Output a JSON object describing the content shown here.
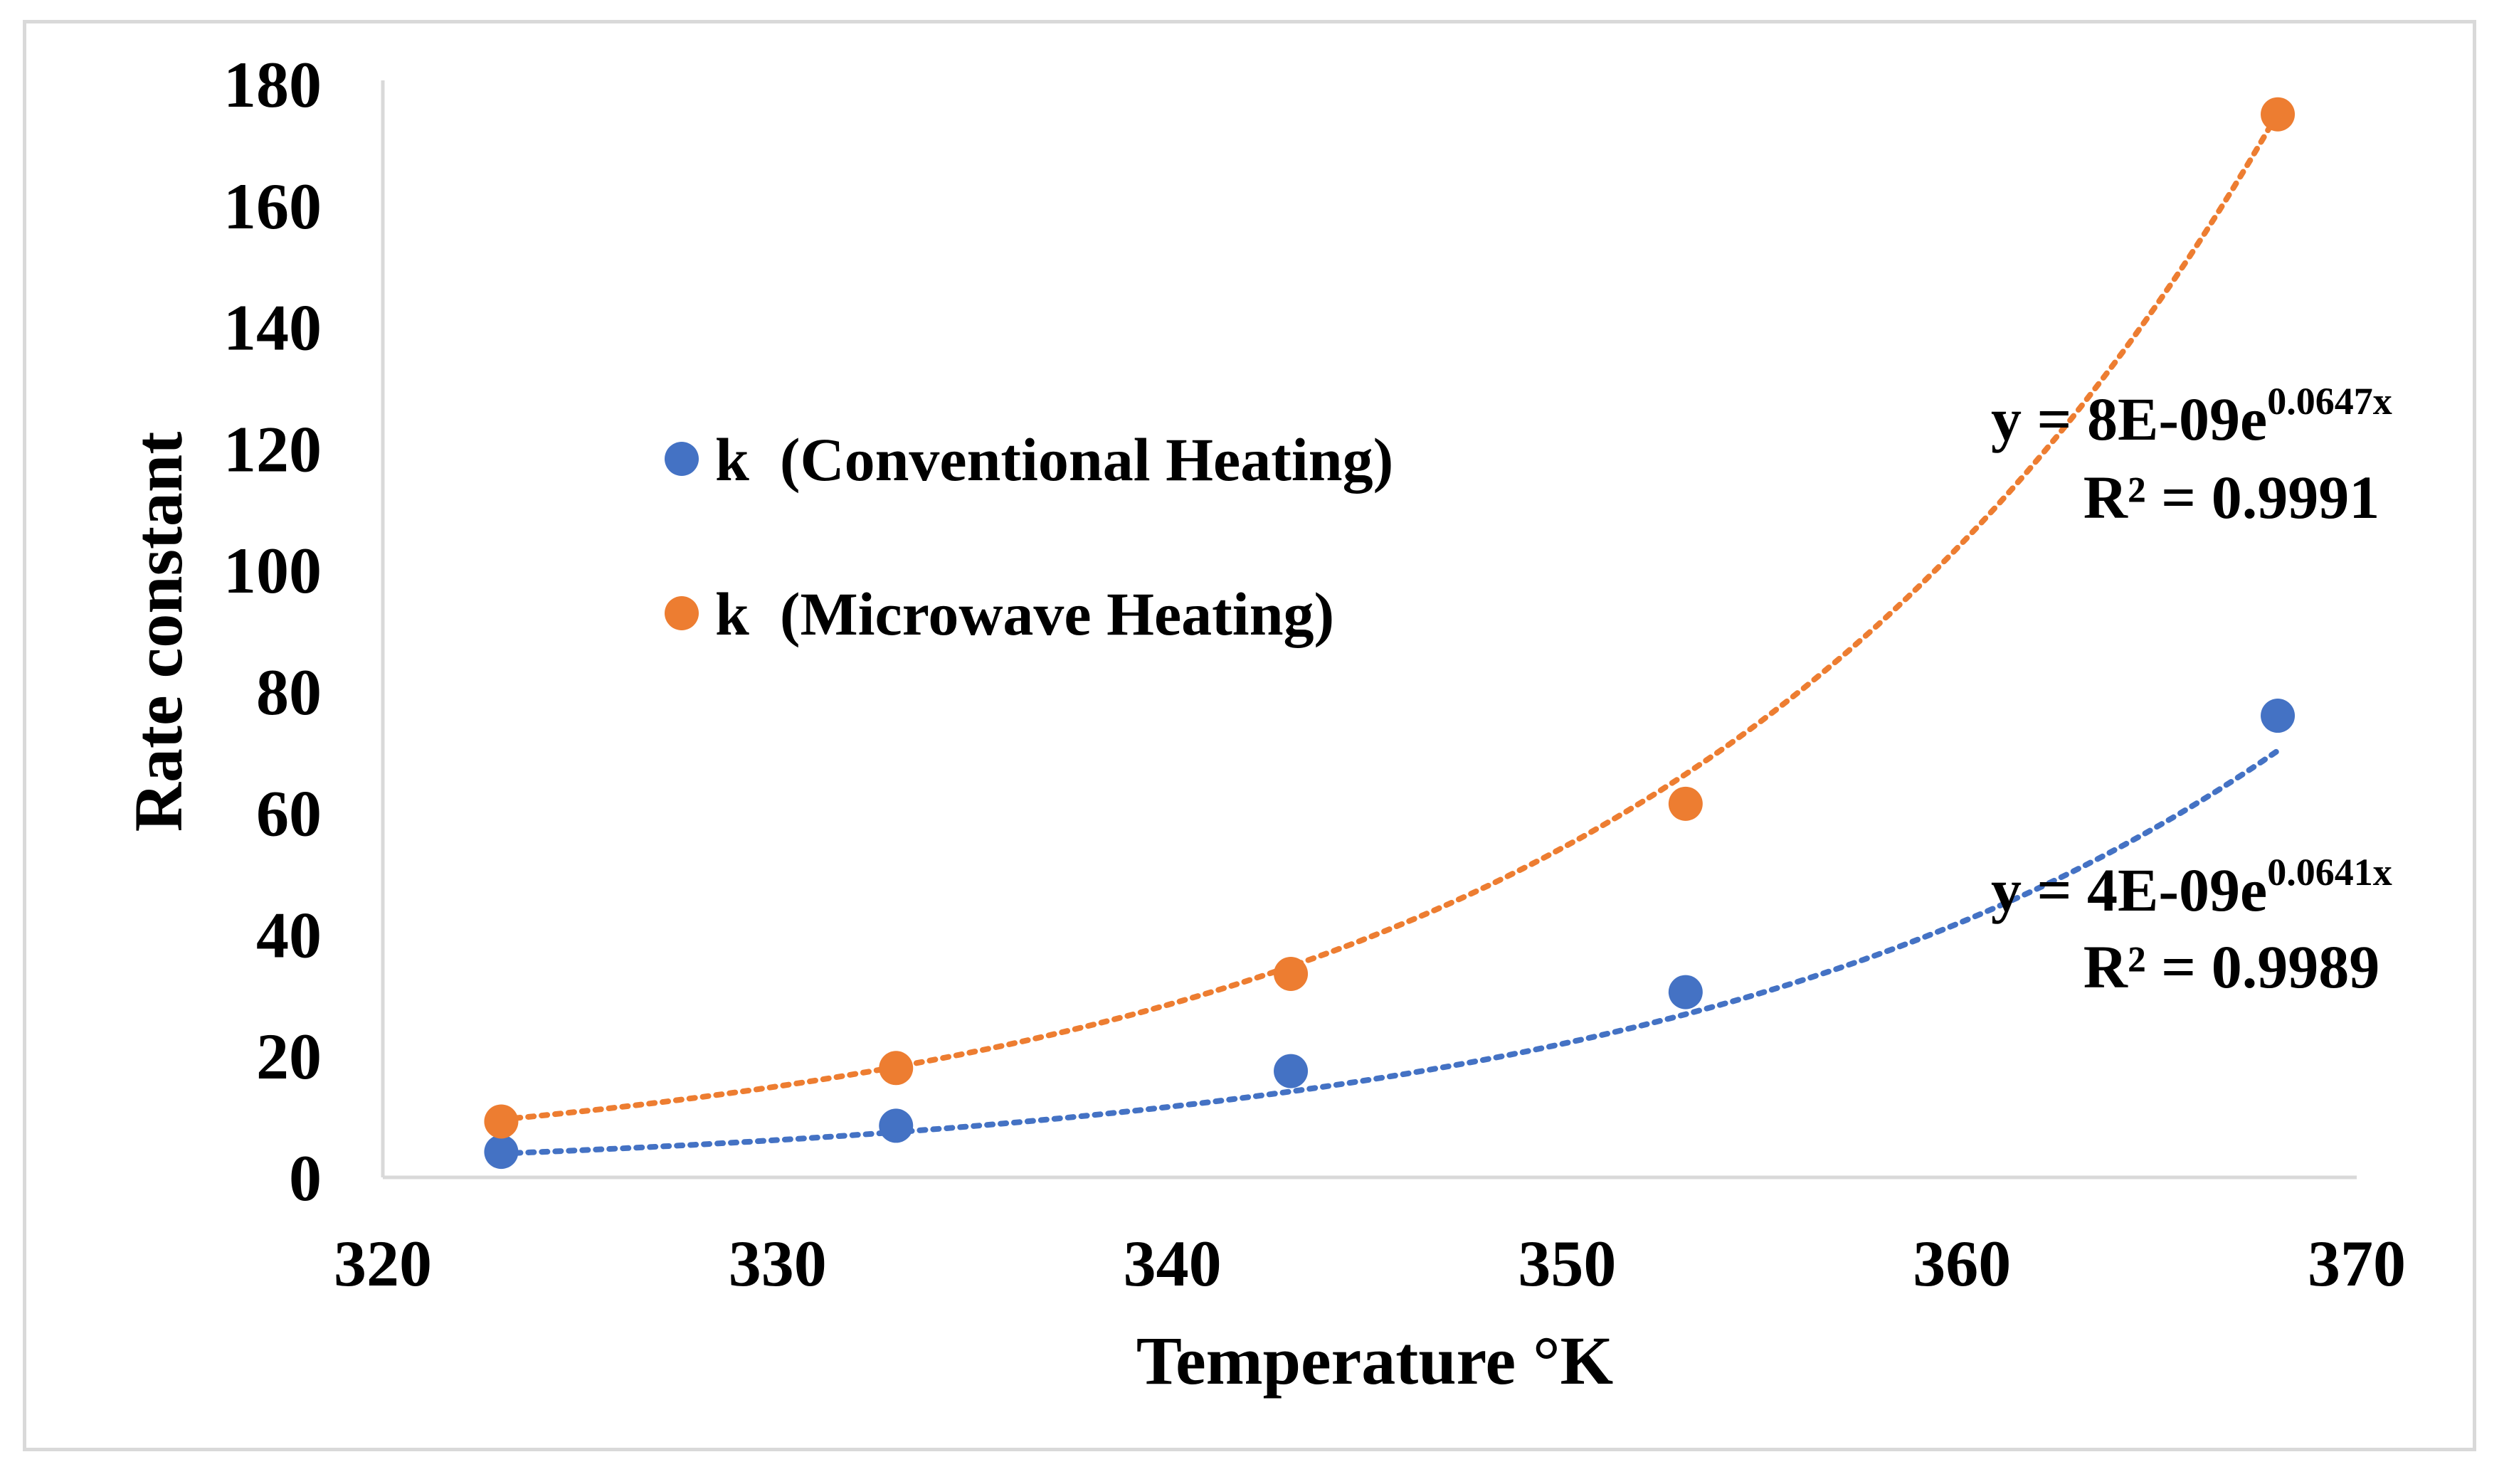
{
  "chart_data": {
    "type": "scatter",
    "title": "",
    "xlabel": "Temperature °K",
    "ylabel": "Rate constant",
    "xlim": [
      320,
      370
    ],
    "ylim": [
      0,
      180
    ],
    "xticks": [
      320,
      330,
      340,
      350,
      360,
      370
    ],
    "yticks": [
      0,
      20,
      40,
      60,
      80,
      100,
      120,
      140,
      160,
      180
    ],
    "grid": false,
    "legend_position": "upper-left",
    "series": [
      {
        "name": "k  (Conventional Heating)",
        "color": "#4472C4",
        "x": [
          323,
          333,
          343,
          353,
          368
        ],
        "y": [
          4.2,
          8.5,
          17.5,
          30.5,
          76
        ],
        "trendline": {
          "type": "exponential",
          "a": 4e-09,
          "b": 0.0641,
          "equation_base": "y = 4E-09e",
          "equation_exp": "0.0641x",
          "r_squared_label": "R² = 0.9989"
        }
      },
      {
        "name": "k  (Microwave Heating)",
        "color": "#ED7D31",
        "x": [
          323,
          333,
          343,
          353,
          368
        ],
        "y": [
          9.2,
          18,
          33.5,
          61.5,
          175
        ],
        "trendline": {
          "type": "exponential",
          "a": 8e-09,
          "b": 0.0647,
          "equation_base": "y = 8E-09e",
          "equation_exp": "0.0647x",
          "r_squared_label": "R² = 0.9991"
        }
      }
    ]
  }
}
